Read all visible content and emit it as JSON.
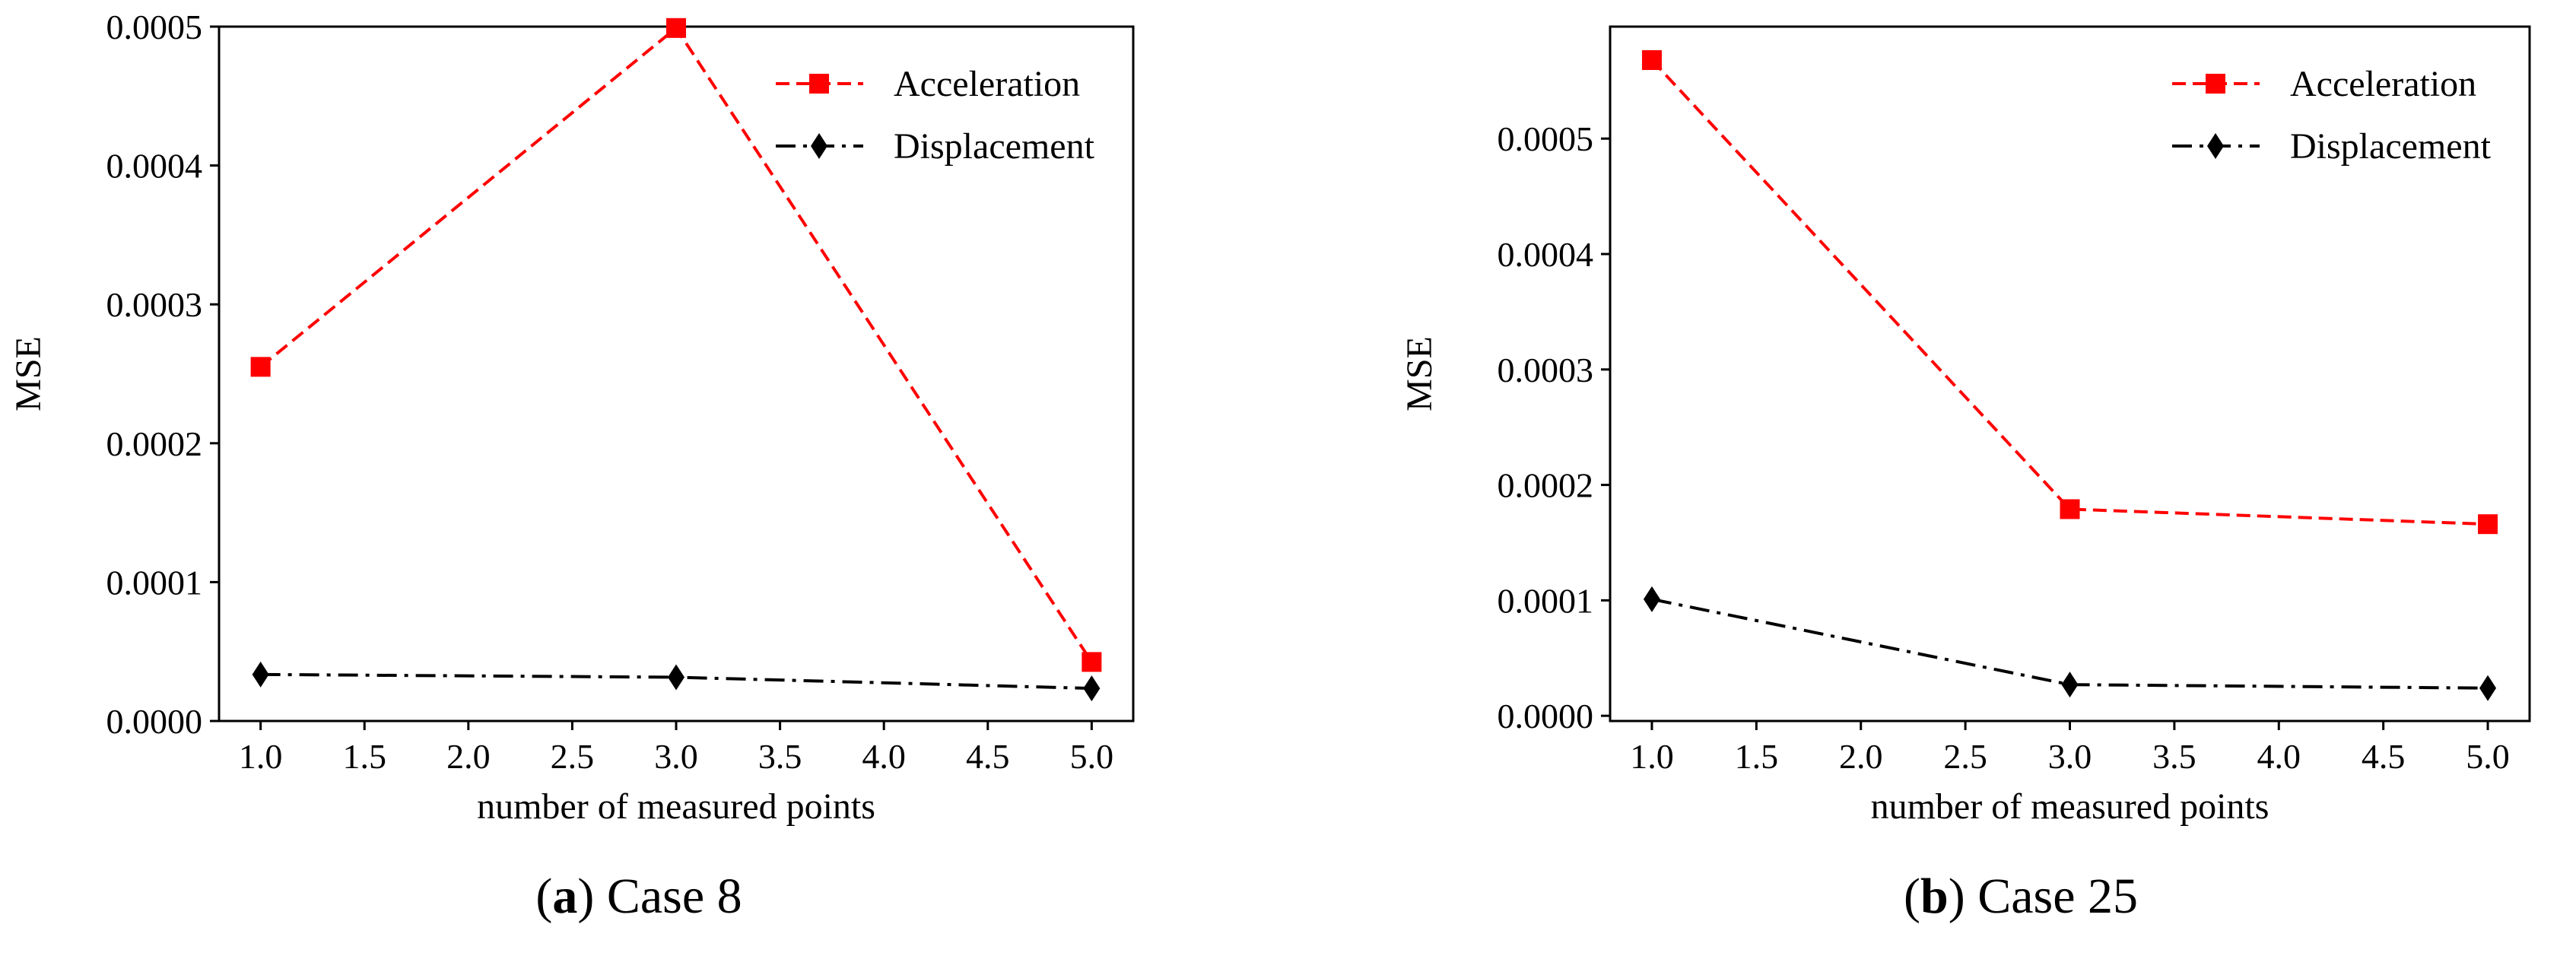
{
  "chart_data": [
    {
      "type": "line",
      "panel": "a",
      "caption": {
        "open": "(",
        "letter": "a",
        "close": ")",
        "text": " Case 8"
      },
      "xlabel": "number of measured points",
      "ylabel": "MSE",
      "xlim": [
        0.8,
        5.2
      ],
      "ylim": [
        0.0,
        0.0005
      ],
      "xticks": [
        1.0,
        1.5,
        2.0,
        2.5,
        3.0,
        3.5,
        4.0,
        4.5,
        5.0
      ],
      "xtick_labels": [
        "1.0",
        "1.5",
        "2.0",
        "2.5",
        "3.0",
        "3.5",
        "4.0",
        "4.5",
        "5.0"
      ],
      "yticks": [
        0.0,
        0.0001,
        0.0002,
        0.0003,
        0.0004,
        0.0005
      ],
      "ytick_labels": [
        "0.0000",
        "0.0001",
        "0.0002",
        "0.0003",
        "0.0004",
        "0.0005"
      ],
      "grid": false,
      "legend": "top-right",
      "x": [
        1.0,
        3.0,
        5.0
      ],
      "series": [
        {
          "name": "Acceleration",
          "values": [
            0.000255,
            0.000499,
            4.25e-05
          ],
          "color": "#ff0000",
          "marker": "square",
          "dash": "dashed"
        },
        {
          "name": "Displacement",
          "values": [
            3.35e-05,
            3.15e-05,
            2.35e-05
          ],
          "color": "#000000",
          "marker": "diamond",
          "dash": "dashdot"
        }
      ]
    },
    {
      "type": "line",
      "panel": "b",
      "caption": {
        "open": "(",
        "letter": "b",
        "close": ")",
        "text": " Case 25"
      },
      "xlabel": "number of measured points",
      "ylabel": "MSE",
      "xlim": [
        0.8,
        5.2
      ],
      "ylim": [
        -4.5e-06,
        0.000597
      ],
      "xticks": [
        1.0,
        1.5,
        2.0,
        2.5,
        3.0,
        3.5,
        4.0,
        4.5,
        5.0
      ],
      "xtick_labels": [
        "1.0",
        "1.5",
        "2.0",
        "2.5",
        "3.0",
        "3.5",
        "4.0",
        "4.5",
        "5.0"
      ],
      "yticks": [
        0.0,
        0.0001,
        0.0002,
        0.0003,
        0.0004,
        0.0005
      ],
      "ytick_labels": [
        "0.0000",
        "0.0001",
        "0.0002",
        "0.0003",
        "0.0004",
        "0.0005"
      ],
      "grid": false,
      "legend": "top-right",
      "x": [
        1.0,
        3.0,
        5.0
      ],
      "series": [
        {
          "name": "Acceleration",
          "values": [
            0.000568,
            0.000179,
            0.000166
          ],
          "color": "#ff0000",
          "marker": "square",
          "dash": "dashed"
        },
        {
          "name": "Displacement",
          "values": [
            0.000101,
            2.7e-05,
            2.4e-05
          ],
          "color": "#000000",
          "marker": "diamond",
          "dash": "dashdot"
        }
      ]
    }
  ]
}
